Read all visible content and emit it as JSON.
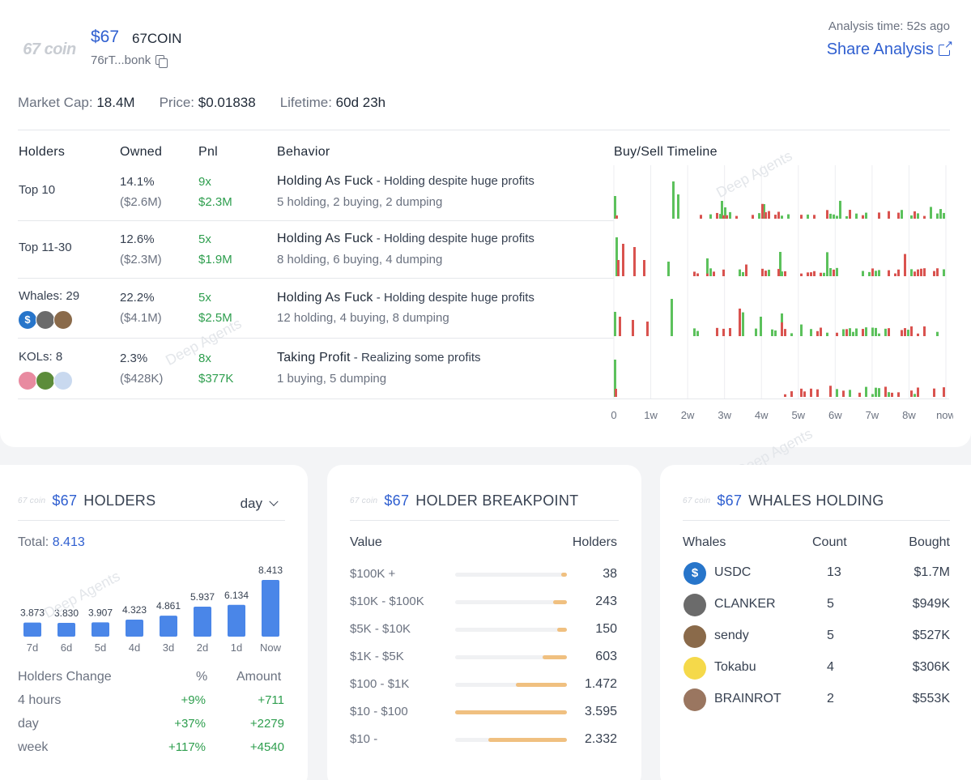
{
  "header": {
    "logo_text": "67 coin",
    "price": "$67",
    "name": "67COIN",
    "address": "76rT...bonk",
    "analysis_time": "Analysis time: 52s ago",
    "share_label": "Share Analysis"
  },
  "stats": {
    "market_cap_label": "Market Cap:",
    "market_cap": "18.4M",
    "price_label": "Price:",
    "price": "$0.01838",
    "lifetime_label": "Lifetime:",
    "lifetime": "60d 23h"
  },
  "table": {
    "headers": [
      "Holders",
      "Owned",
      "Pnl",
      "Behavior",
      "Buy/Sell Timeline"
    ],
    "rows": [
      {
        "holder": "Top 10",
        "owned_pct": "14.1%",
        "owned_usd": "($2.6M)",
        "pnl_x": "9x",
        "pnl_usd": "$2.3M",
        "behavior_title": "Holding As Fuck",
        "behavior_desc": " - Holding despite huge profits",
        "behavior_detail": "5 holding, 2 buying, 2 dumping"
      },
      {
        "holder": "Top 11-30",
        "owned_pct": "12.6%",
        "owned_usd": "($2.3M)",
        "pnl_x": "5x",
        "pnl_usd": "$1.9M",
        "behavior_title": "Holding As Fuck",
        "behavior_desc": " - Holding despite huge profits",
        "behavior_detail": "8 holding, 6 buying, 4 dumping"
      },
      {
        "holder": "Whales: 29",
        "owned_pct": "22.2%",
        "owned_usd": "($4.1M)",
        "pnl_x": "5x",
        "pnl_usd": "$2.5M",
        "behavior_title": "Holding As Fuck",
        "behavior_desc": " - Holding despite huge profits",
        "behavior_detail": "12 holding, 4 buying, 8 dumping"
      },
      {
        "holder": "KOLs: 8",
        "owned_pct": "2.3%",
        "owned_usd": "($428K)",
        "pnl_x": "8x",
        "pnl_usd": "$377K",
        "behavior_title": "Taking Profit",
        "behavior_desc": " - Realizing some profits",
        "behavior_detail": "1 buying, 5 dumping"
      }
    ],
    "timeline_ticks": [
      "0",
      "1w",
      "2w",
      "3w",
      "4w",
      "5w",
      "6w",
      "7w",
      "8w",
      "now"
    ]
  },
  "watermark": "Deep Agents",
  "holders_card": {
    "logo_text": "67 coin",
    "symbol": "$67",
    "title": "HOLDERS",
    "period": "day",
    "total_label": "Total:",
    "total_value": "8.413",
    "change_header": "Holders Change",
    "pct_header": "%",
    "amount_header": "Amount",
    "changes": [
      {
        "label": "4 hours",
        "pct": "+9%",
        "amount": "+711"
      },
      {
        "label": "day",
        "pct": "+37%",
        "amount": "+2279"
      },
      {
        "label": "week",
        "pct": "+117%",
        "amount": "+4540"
      }
    ]
  },
  "chart_data": {
    "type": "bar",
    "categories": [
      "7d",
      "6d",
      "5d",
      "4d",
      "3d",
      "2d",
      "1d",
      "Now"
    ],
    "values": [
      3873,
      3830,
      3907,
      4323,
      4861,
      5937,
      6134,
      8413
    ],
    "value_labels": [
      "3.873",
      "3.830",
      "3.907",
      "4.323",
      "4.861",
      "5.937",
      "6.134",
      "8.413"
    ],
    "bar_color": "#4a86e8",
    "title": "",
    "xlabel": "",
    "ylabel": ""
  },
  "breakpoint_card": {
    "logo_text": "67 coin",
    "symbol": "$67",
    "title": "HOLDER BREAKPOINT",
    "value_header": "Value",
    "holders_header": "Holders",
    "rows": [
      {
        "range": "$100K +",
        "holders": "38",
        "fill_start": 0.95,
        "fill_end": 1.0
      },
      {
        "range": "$10K - $100K",
        "holders": "243",
        "fill_start": 0.88,
        "fill_end": 1.0
      },
      {
        "range": "$5K - $10K",
        "holders": "150",
        "fill_start": 0.91,
        "fill_end": 1.0
      },
      {
        "range": "$1K - $5K",
        "holders": "603",
        "fill_start": 0.78,
        "fill_end": 1.0
      },
      {
        "range": "$100 - $1K",
        "holders": "1.472",
        "fill_start": 0.54,
        "fill_end": 1.0
      },
      {
        "range": "$10 - $100",
        "holders": "3.595",
        "fill_start": 0.0,
        "fill_end": 1.0
      },
      {
        "range": "$10 -",
        "holders": "2.332",
        "fill_start": 0.3,
        "fill_end": 1.0
      }
    ]
  },
  "whales_card": {
    "logo_text": "67 coin",
    "symbol": "$67",
    "title": "WHALES HOLDING",
    "headers": [
      "Whales",
      "Count",
      "Bought"
    ],
    "rows": [
      {
        "name": "USDC",
        "count": "13",
        "bought": "$1.7M",
        "avatar_color": "#2775ca"
      },
      {
        "name": "CLANKER",
        "count": "5",
        "bought": "$949K",
        "avatar_color": "#6b6b6b"
      },
      {
        "name": "sendy",
        "count": "5",
        "bought": "$527K",
        "avatar_color": "#8a6a4a"
      },
      {
        "name": "Tokabu",
        "count": "4",
        "bought": "$306K",
        "avatar_color": "#f5d94a"
      },
      {
        "name": "BRAINROT",
        "count": "2",
        "bought": "$553K",
        "avatar_color": "#9a7660"
      }
    ]
  },
  "colors": {
    "accent": "#2f5fd0",
    "positive": "#2e9e4e",
    "buy": "#5cc15c",
    "sell": "#d9534f",
    "breakpoint": "#f0c080"
  }
}
